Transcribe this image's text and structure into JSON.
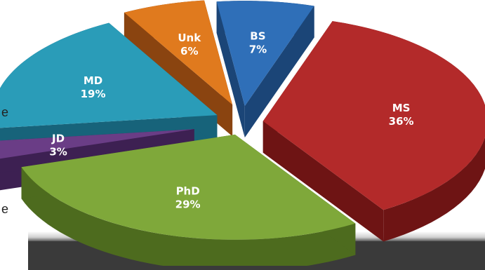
{
  "chart_data": {
    "type": "pie",
    "title": "",
    "categories": [
      "MS",
      "PhD",
      "JD",
      "MD",
      "Unk",
      "BS"
    ],
    "values": [
      36,
      29,
      3,
      19,
      6,
      7
    ],
    "labels": [
      "36%",
      "29%",
      "3%",
      "19%",
      "6%",
      "7%"
    ],
    "exploded": true,
    "three_d": true,
    "legend": "none"
  },
  "colors": {
    "MS": {
      "top": "#b32a2a",
      "side": "#6e1414"
    },
    "PhD": {
      "top": "#7fa83a",
      "side": "#4d6b1e"
    },
    "JD": {
      "top": "#6a3d86",
      "side": "#3d2052"
    },
    "MD": {
      "top": "#2a9cb8",
      "side": "#17637a"
    },
    "Unk": {
      "top": "#e07a1e",
      "side": "#8a4410"
    },
    "BS": {
      "top": "#2f6fb8",
      "side": "#1b4577"
    }
  },
  "edge_text": [
    "e",
    "e"
  ]
}
